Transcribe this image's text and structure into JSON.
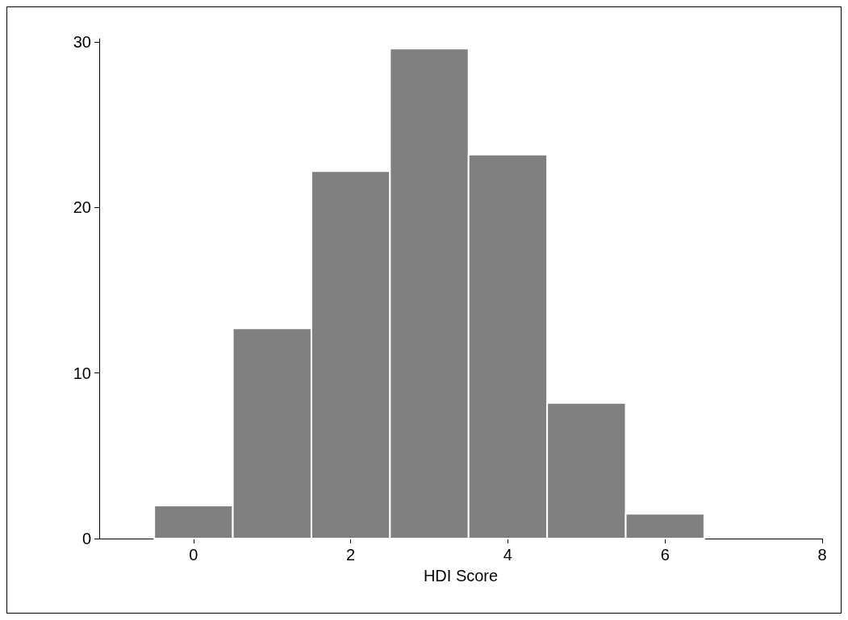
{
  "chart_data": {
    "type": "histogram",
    "xlabel": "HDI Score",
    "bins": [
      -0.5,
      0.5,
      1.5,
      2.5,
      3.5,
      4.5,
      5.5,
      6.5
    ],
    "values": [
      2,
      12.7,
      22.2,
      29.6,
      23.2,
      8.2,
      1.5
    ],
    "color": "#808080",
    "xlim": [
      -1.2,
      8
    ],
    "xticks": [
      0,
      2,
      4,
      6,
      8
    ],
    "ylim": [
      0,
      30.2
    ],
    "yticks": [
      0,
      10,
      20,
      30
    ],
    "grid": false
  }
}
